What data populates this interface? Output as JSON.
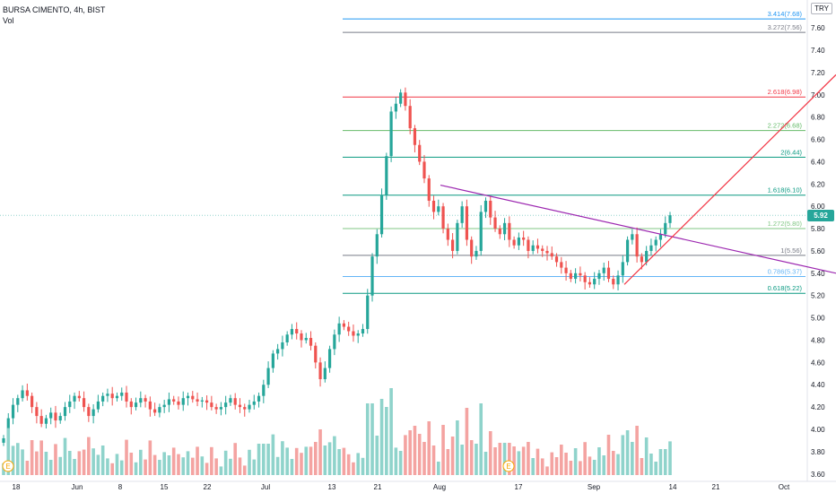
{
  "header": {
    "symbol_line": "BURSA CIMENTO, 4h, BIST",
    "volume_label": "Vol"
  },
  "currency": "TRY",
  "last_price": "5.92",
  "colors": {
    "up": "#26a69a",
    "down": "#ef5350",
    "vol_up": "#8fd3cb",
    "vol_down": "#f4a3a1",
    "trendline": "#9c27b0",
    "support_line": "#f23645"
  },
  "chart_data": {
    "type": "candlestick",
    "ylim": [
      3.55,
      7.85
    ],
    "grid": false,
    "y_ticks": [
      "3.60",
      "3.80",
      "4.00",
      "4.20",
      "4.40",
      "4.60",
      "4.80",
      "5.00",
      "5.20",
      "5.40",
      "5.60",
      "5.80",
      "6.00",
      "6.20",
      "6.40",
      "6.60",
      "6.80",
      "7.00",
      "7.20",
      "7.40",
      "7.60"
    ],
    "x_ticks": [
      "18",
      "Jun",
      "8",
      "15",
      "22",
      "Jul",
      "13",
      "21",
      "Aug",
      "17",
      "Sep",
      "14",
      "21",
      "Oct"
    ],
    "fib_levels": [
      {
        "label": "0.618(5.22)",
        "value": 5.22,
        "color": "#089981"
      },
      {
        "label": "0.786(5.37)",
        "value": 5.37,
        "color": "#64b5f6"
      },
      {
        "label": "1(5.56)",
        "value": 5.56,
        "color": "#787b86"
      },
      {
        "label": "1.272(5.80)",
        "value": 5.8,
        "color": "#81c784"
      },
      {
        "label": "1.618(6.10)",
        "value": 6.1,
        "color": "#089981"
      },
      {
        "label": "2(6.44)",
        "value": 6.44,
        "color": "#089981"
      },
      {
        "label": "2.272(6.68)",
        "value": 6.68,
        "color": "#66bb6a"
      },
      {
        "label": "2.618(6.98)",
        "value": 6.98,
        "color": "#f23645"
      },
      {
        "label": "3.272(7.56)",
        "value": 7.56,
        "color": "#787b86"
      },
      {
        "label": "3.414(7.68)",
        "value": 7.68,
        "color": "#2196f3"
      },
      {
        "label": "3.618(7.86)",
        "value": 7.86,
        "color": "#9c27b0"
      }
    ],
    "annotations": [
      "E",
      "E"
    ],
    "series": [
      {
        "name": "",
        "note": "approx close prices read from chart, first candle to last",
        "values": [
          3.92,
          4.1,
          4.22,
          4.28,
          4.35,
          4.3,
          4.2,
          4.12,
          4.05,
          4.1,
          4.15,
          4.08,
          4.12,
          4.2,
          4.25,
          4.3,
          4.28,
          4.2,
          4.12,
          4.18,
          4.25,
          4.3,
          4.32,
          4.28,
          4.3,
          4.33,
          4.25,
          4.2,
          4.24,
          4.28,
          4.25,
          4.18,
          4.15,
          4.2,
          4.22,
          4.27,
          4.25,
          4.22,
          4.28,
          4.3,
          4.27,
          4.25,
          4.26,
          4.24,
          4.2,
          4.18,
          4.2,
          4.24,
          4.28,
          4.22,
          4.2,
          4.18,
          4.22,
          4.25,
          4.3,
          4.4,
          4.55,
          4.68,
          4.72,
          4.78,
          4.85,
          4.9,
          4.86,
          4.8,
          4.82,
          4.75,
          4.6,
          4.45,
          4.55,
          4.72,
          4.85,
          4.95,
          4.92,
          4.88,
          4.84,
          4.86,
          4.9,
          5.2,
          5.55,
          5.75,
          6.1,
          6.45,
          6.85,
          6.92,
          7.02,
          6.9,
          6.7,
          6.55,
          6.4,
          6.25,
          6.05,
          5.95,
          6.0,
          5.8,
          5.7,
          5.6,
          5.85,
          6.0,
          5.7,
          5.55,
          5.6,
          5.95,
          6.05,
          5.9,
          5.8,
          5.75,
          5.85,
          5.7,
          5.65,
          5.72,
          5.7,
          5.6,
          5.65,
          5.62,
          5.6,
          5.58,
          5.55,
          5.5,
          5.45,
          5.4,
          5.35,
          5.4,
          5.38,
          5.32,
          5.3,
          5.35,
          5.4,
          5.45,
          5.35,
          5.3,
          5.38,
          5.5,
          5.7,
          5.75,
          5.55,
          5.5,
          5.6,
          5.65,
          5.7,
          5.75,
          5.85,
          5.92
        ]
      }
    ]
  }
}
